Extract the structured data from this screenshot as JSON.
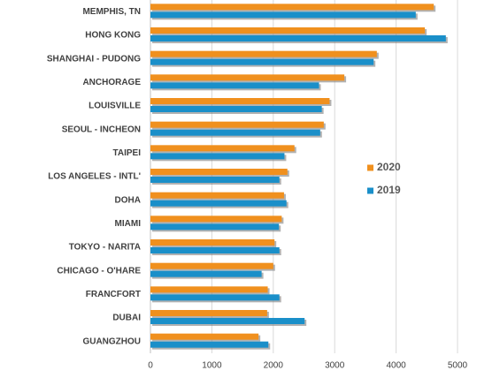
{
  "chart_data": {
    "type": "hbar",
    "categories": [
      "MEMPHIS, TN",
      "HONG KONG",
      "SHANGHAI - PUDONG",
      "ANCHORAGE",
      "LOUISVILLE",
      "SEOUL - INCHEON",
      "TAIPEI",
      "LOS ANGELES - INTL'",
      "DOHA",
      "MIAMI",
      "TOKYO - NARITA",
      "CHICAGO - O'HARE",
      "FRANCFORT",
      "DUBAI",
      "GUANGZHOU"
    ],
    "series": [
      {
        "name": "2020",
        "color": "#f0901e",
        "values": [
          4613,
          4468,
          3686,
          3157,
          2917,
          2822,
          2345,
          2230,
          2175,
          2138,
          2020,
          2000,
          1910,
          1900,
          1760
        ]
      },
      {
        "name": "2019",
        "color": "#1a8fc9",
        "values": [
          4320,
          4810,
          3634,
          2745,
          2790,
          2764,
          2182,
          2100,
          2215,
          2092,
          2100,
          1810,
          2100,
          2510,
          1920
        ]
      }
    ],
    "xlim": [
      0,
      5000
    ],
    "xticks": [
      0,
      1000,
      2000,
      3000,
      4000,
      5000
    ],
    "grid": true,
    "legend": "right"
  }
}
